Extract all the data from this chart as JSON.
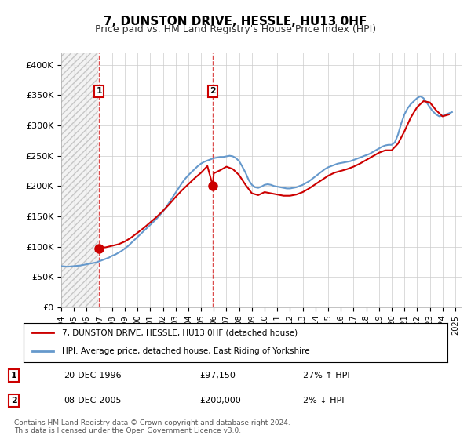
{
  "title": "7, DUNSTON DRIVE, HESSLE, HU13 0HF",
  "subtitle": "Price paid vs. HM Land Registry's House Price Index (HPI)",
  "ylabel_ticks": [
    "£0",
    "£50K",
    "£100K",
    "£150K",
    "£200K",
    "£250K",
    "£300K",
    "£350K",
    "£400K"
  ],
  "ytick_values": [
    0,
    50000,
    100000,
    150000,
    200000,
    250000,
    300000,
    350000,
    400000
  ],
  "ylim": [
    0,
    420000
  ],
  "xlim_start": 1994.0,
  "xlim_end": 2025.5,
  "hatch_end_year": 1996.9,
  "sale1": {
    "year": 1996.97,
    "price": 97150,
    "label": "1"
  },
  "sale2": {
    "year": 2005.93,
    "price": 200000,
    "label": "2"
  },
  "vline1_year": 1996.97,
  "vline2_year": 2005.93,
  "legend_line1": "7, DUNSTON DRIVE, HESSLE, HU13 0HF (detached house)",
  "legend_line2": "HPI: Average price, detached house, East Riding of Yorkshire",
  "table_row1": [
    "1",
    "20-DEC-1996",
    "£97,150",
    "27% ↑ HPI"
  ],
  "table_row2": [
    "2",
    "08-DEC-2005",
    "£200,000",
    "2% ↓ HPI"
  ],
  "footer": "Contains HM Land Registry data © Crown copyright and database right 2024.\nThis data is licensed under the Open Government Licence v3.0.",
  "red_color": "#cc0000",
  "blue_color": "#6699cc",
  "hatch_color": "#cccccc",
  "grid_color": "#cccccc",
  "background_color": "#ffffff",
  "hpi_data_years": [
    1994.0,
    1994.25,
    1994.5,
    1994.75,
    1995.0,
    1995.25,
    1995.5,
    1995.75,
    1996.0,
    1996.25,
    1996.5,
    1996.75,
    1997.0,
    1997.25,
    1997.5,
    1997.75,
    1998.0,
    1998.25,
    1998.5,
    1998.75,
    1999.0,
    1999.25,
    1999.5,
    1999.75,
    2000.0,
    2000.25,
    2000.5,
    2000.75,
    2001.0,
    2001.25,
    2001.5,
    2001.75,
    2002.0,
    2002.25,
    2002.5,
    2002.75,
    2003.0,
    2003.25,
    2003.5,
    2003.75,
    2004.0,
    2004.25,
    2004.5,
    2004.75,
    2005.0,
    2005.25,
    2005.5,
    2005.75,
    2006.0,
    2006.25,
    2006.5,
    2006.75,
    2007.0,
    2007.25,
    2007.5,
    2007.75,
    2008.0,
    2008.25,
    2008.5,
    2008.75,
    2009.0,
    2009.25,
    2009.5,
    2009.75,
    2010.0,
    2010.25,
    2010.5,
    2010.75,
    2011.0,
    2011.25,
    2011.5,
    2011.75,
    2012.0,
    2012.25,
    2012.5,
    2012.75,
    2013.0,
    2013.25,
    2013.5,
    2013.75,
    2014.0,
    2014.25,
    2014.5,
    2014.75,
    2015.0,
    2015.25,
    2015.5,
    2015.75,
    2016.0,
    2016.25,
    2016.5,
    2016.75,
    2017.0,
    2017.25,
    2017.5,
    2017.75,
    2018.0,
    2018.25,
    2018.5,
    2018.75,
    2019.0,
    2019.25,
    2019.5,
    2019.75,
    2020.0,
    2020.25,
    2020.5,
    2020.75,
    2021.0,
    2021.25,
    2021.5,
    2021.75,
    2022.0,
    2022.25,
    2022.5,
    2022.75,
    2023.0,
    2023.25,
    2023.5,
    2023.75,
    2024.0,
    2024.25,
    2024.5,
    2024.75
  ],
  "hpi_data_values": [
    68000,
    67500,
    67000,
    67500,
    68000,
    68500,
    69000,
    70000,
    71000,
    72000,
    73000,
    74000,
    76000,
    78000,
    80000,
    82000,
    85000,
    87000,
    90000,
    93000,
    97000,
    101000,
    106000,
    111000,
    116000,
    121000,
    126000,
    131000,
    136000,
    141000,
    146000,
    152000,
    158000,
    165000,
    173000,
    181000,
    189000,
    197000,
    205000,
    212000,
    218000,
    223000,
    228000,
    233000,
    237000,
    240000,
    242000,
    244000,
    246000,
    247000,
    248000,
    248000,
    249000,
    250000,
    249000,
    246000,
    241000,
    232000,
    222000,
    210000,
    202000,
    198000,
    197000,
    199000,
    202000,
    203000,
    202000,
    200000,
    199000,
    198000,
    197000,
    196000,
    196000,
    197000,
    198000,
    200000,
    202000,
    205000,
    208000,
    212000,
    216000,
    220000,
    224000,
    228000,
    231000,
    233000,
    235000,
    237000,
    238000,
    239000,
    240000,
    241000,
    243000,
    245000,
    247000,
    249000,
    251000,
    253000,
    256000,
    259000,
    262000,
    265000,
    267000,
    268000,
    268000,
    272000,
    285000,
    303000,
    318000,
    328000,
    335000,
    340000,
    345000,
    348000,
    345000,
    338000,
    330000,
    323000,
    318000,
    315000,
    316000,
    318000,
    320000,
    322000
  ],
  "red_data_years": [
    1996.97,
    1997.0,
    1997.5,
    1998.0,
    1998.5,
    1999.0,
    1999.5,
    2000.0,
    2000.5,
    2001.0,
    2001.5,
    2002.0,
    2002.5,
    2003.0,
    2003.5,
    2004.0,
    2004.5,
    2005.0,
    2005.5,
    2005.93,
    2006.0,
    2006.5,
    2007.0,
    2007.5,
    2008.0,
    2008.5,
    2009.0,
    2009.5,
    2010.0,
    2010.5,
    2011.0,
    2011.5,
    2012.0,
    2012.5,
    2013.0,
    2013.5,
    2014.0,
    2014.5,
    2015.0,
    2015.5,
    2016.0,
    2016.5,
    2017.0,
    2017.5,
    2018.0,
    2018.5,
    2019.0,
    2019.5,
    2020.0,
    2020.5,
    2021.0,
    2021.5,
    2022.0,
    2022.5,
    2023.0,
    2023.5,
    2024.0,
    2024.5
  ],
  "red_data_values": [
    97150,
    98000,
    99000,
    101500,
    104000,
    108500,
    115000,
    123000,
    131000,
    140000,
    149000,
    159000,
    170000,
    182000,
    193000,
    203000,
    213000,
    222000,
    233000,
    200000,
    221000,
    226000,
    232000,
    228000,
    218000,
    202000,
    188000,
    185000,
    190000,
    188000,
    186000,
    184000,
    184000,
    186000,
    190000,
    196000,
    203000,
    210000,
    217000,
    222000,
    225000,
    228000,
    232000,
    237000,
    243000,
    249000,
    255000,
    259000,
    259000,
    270000,
    290000,
    313000,
    330000,
    340000,
    338000,
    325000,
    315000,
    318000
  ]
}
